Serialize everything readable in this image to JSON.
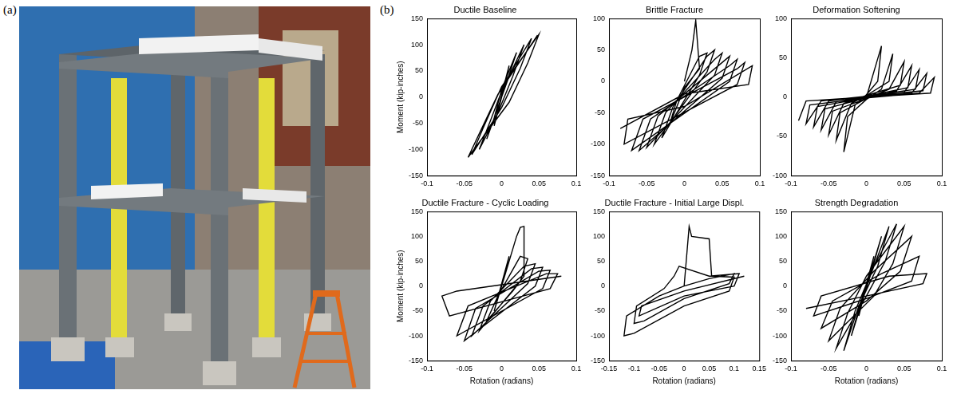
{
  "panel_labels": [
    "(a)",
    "(b)"
  ],
  "chart_data": [
    {
      "type": "line",
      "title": "Ductile Baseline",
      "y_label": "Moment (kip-inches)",
      "xlim": [
        -0.1,
        0.1
      ],
      "xticks": [
        -0.1,
        -0.05,
        0,
        0.05,
        0.1
      ],
      "ylim": [
        -150,
        150
      ],
      "yticks": [
        -150,
        -100,
        -50,
        0,
        50,
        100,
        150
      ],
      "grid": false,
      "color": "#000000",
      "line_style": "solid",
      "marker": "none",
      "x": [
        0,
        0.01,
        0.0,
        -0.01,
        0,
        0.02,
        0.0,
        -0.01,
        -0.02,
        -0.005,
        0.01,
        0.03,
        0.015,
        -0.005,
        -0.03,
        -0.015,
        0.005,
        0.04,
        0.025,
        0.0,
        -0.04,
        -0.025,
        0.0,
        0.05,
        0.035,
        0.01,
        -0.045,
        -0.03,
        -0.005,
        0.048
      ],
      "values": [
        0,
        60,
        5,
        -55,
        0,
        85,
        15,
        -40,
        -80,
        -20,
        40,
        100,
        40,
        -30,
        -100,
        -45,
        30,
        112,
        55,
        -20,
        -110,
        -60,
        20,
        120,
        65,
        -10,
        -115,
        -70,
        5,
        118
      ]
    },
    {
      "type": "line",
      "title": "Brittle Fracture",
      "xlim": [
        -0.1,
        0.1
      ],
      "xticks": [
        -0.1,
        -0.05,
        0,
        0.05,
        0.1
      ],
      "ylim": [
        -150,
        100
      ],
      "yticks": [
        -150,
        -100,
        -50,
        0,
        50,
        100
      ],
      "grid": false,
      "color": "#000000",
      "line_style": "solid",
      "marker": "none",
      "x": [
        0,
        0.01,
        0.015,
        0.02,
        0.0,
        -0.02,
        -0.01,
        0.02,
        0.03,
        0.02,
        -0.03,
        -0.015,
        0.03,
        0.04,
        0.03,
        -0.04,
        -0.025,
        0.04,
        0.05,
        0.04,
        -0.05,
        -0.035,
        0.05,
        0.06,
        0.05,
        -0.06,
        -0.045,
        0.06,
        0.07,
        0.06,
        -0.07,
        -0.055,
        0.07,
        0.08,
        0.07,
        -0.08,
        -0.075,
        0.0,
        0.09,
        0.085,
        0.0,
        -0.085
      ],
      "values": [
        0,
        50,
        97,
        20,
        -10,
        -70,
        -30,
        40,
        45,
        10,
        -90,
        -40,
        40,
        50,
        15,
        -100,
        -50,
        35,
        45,
        10,
        -105,
        -55,
        30,
        40,
        5,
        -110,
        -60,
        25,
        35,
        0,
        -110,
        -60,
        20,
        30,
        -5,
        -100,
        -60,
        -40,
        25,
        -5,
        -20,
        -75
      ]
    },
    {
      "type": "line",
      "title": "Deformation Softening",
      "xlim": [
        -0.1,
        0.1
      ],
      "xticks": [
        -0.1,
        -0.05,
        0,
        0.05,
        0.1
      ],
      "ylim": [
        -100,
        100
      ],
      "yticks": [
        -100,
        -50,
        0,
        50,
        100
      ],
      "grid": false,
      "color": "#000000",
      "line_style": "solid",
      "marker": "none",
      "x": [
        0,
        0.02,
        0.015,
        0.0,
        -0.015,
        -0.03,
        -0.025,
        0,
        0.02,
        0.035,
        0.03,
        0.0,
        -0.02,
        -0.04,
        -0.035,
        0,
        0.03,
        0.05,
        0.045,
        0,
        -0.03,
        -0.05,
        -0.045,
        0,
        0.04,
        0.06,
        0.055,
        0,
        -0.04,
        -0.06,
        -0.055,
        0,
        0.05,
        0.07,
        0.065,
        0,
        -0.05,
        -0.07,
        -0.065,
        0,
        0.06,
        0.08,
        0.075,
        0,
        -0.06,
        -0.08,
        -0.075,
        0,
        0.07,
        0.09,
        0.085,
        0,
        -0.08,
        -0.09
      ],
      "values": [
        0,
        65,
        20,
        3,
        -10,
        -70,
        -25,
        -3,
        10,
        55,
        20,
        2,
        -8,
        -55,
        -20,
        -2,
        10,
        45,
        15,
        2,
        -8,
        -48,
        -18,
        -2,
        8,
        40,
        12,
        1,
        -6,
        -42,
        -15,
        -1,
        6,
        35,
        10,
        1,
        -5,
        -38,
        -12,
        -1,
        5,
        30,
        8,
        1,
        -5,
        -34,
        -10,
        -1,
        5,
        25,
        5,
        0,
        -5,
        -30
      ]
    },
    {
      "type": "line",
      "title": "Ductile Fracture - Cyclic Loading",
      "x_label": "Rotation (radians)",
      "y_label": "Moment (kip-inches)",
      "xlim": [
        -0.1,
        0.1
      ],
      "xticks": [
        -0.1,
        -0.05,
        0,
        0.05,
        0.1
      ],
      "ylim": [
        -150,
        150
      ],
      "yticks": [
        -150,
        -100,
        -50,
        0,
        50,
        100,
        150
      ],
      "grid": false,
      "color": "#000000",
      "line_style": "solid",
      "marker": "none",
      "x": [
        0,
        0.01,
        0.0,
        -0.01,
        0,
        0.02,
        0.025,
        0.03,
        0.03,
        0.03,
        0.015,
        -0.02,
        -0.005,
        0.025,
        0.035,
        0.025,
        -0.03,
        -0.015,
        0.03,
        0.045,
        0.035,
        -0.04,
        -0.025,
        0.04,
        0.055,
        0.045,
        -0.05,
        -0.035,
        0.05,
        0.065,
        0.055,
        -0.06,
        -0.045,
        0.06,
        0.075,
        0.065,
        -0.07,
        -0.08,
        -0.06,
        0.08
      ],
      "values": [
        0,
        60,
        5,
        -50,
        0,
        100,
        118,
        120,
        60,
        20,
        -10,
        -70,
        -20,
        60,
        55,
        10,
        -90,
        -30,
        40,
        45,
        5,
        -100,
        -40,
        35,
        38,
        0,
        -110,
        -45,
        30,
        32,
        -5,
        -100,
        -40,
        25,
        25,
        -5,
        -60,
        -20,
        -10,
        20
      ]
    },
    {
      "type": "line",
      "title": "Ductile Fracture - Initial Large Displ.",
      "x_label": "Rotation (radians)",
      "xlim": [
        -0.15,
        0.15
      ],
      "xticks": [
        -0.15,
        -0.1,
        -0.05,
        0,
        0.05,
        0.1,
        0.15
      ],
      "ylim": [
        -150,
        150
      ],
      "yticks": [
        -150,
        -100,
        -50,
        0,
        50,
        100,
        150
      ],
      "grid": false,
      "color": "#000000",
      "line_style": "solid",
      "marker": "none",
      "x": [
        0,
        0.01,
        0.015,
        0.05,
        0.055,
        0.1,
        0.09,
        0.0,
        -0.1,
        -0.12,
        -0.115,
        -0.05,
        0.0,
        0.05,
        0.1,
        0.09,
        0.0,
        -0.08,
        -0.1,
        -0.095,
        -0.04,
        -0.02,
        -0.01,
        0.05,
        0.11,
        0.1,
        0.0,
        -0.09,
        -0.085,
        0.0,
        0.12
      ],
      "values": [
        0,
        120,
        100,
        95,
        20,
        18,
        -10,
        -40,
        -95,
        -100,
        -60,
        -20,
        0,
        15,
        25,
        5,
        -25,
        -70,
        -75,
        -40,
        -5,
        20,
        40,
        20,
        25,
        0,
        -20,
        -60,
        -40,
        -10,
        20
      ]
    },
    {
      "type": "line",
      "title": "Strength Degradation",
      "x_label": "Rotation (radians)",
      "xlim": [
        -0.1,
        0.1
      ],
      "xticks": [
        -0.1,
        -0.05,
        0,
        0.05,
        0.1
      ],
      "ylim": [
        -150,
        150
      ],
      "yticks": [
        -150,
        -100,
        -50,
        0,
        50,
        100,
        150
      ],
      "grid": false,
      "color": "#000000",
      "line_style": "solid",
      "marker": "none",
      "x": [
        0,
        0.01,
        0,
        -0.01,
        0,
        0.02,
        0.005,
        -0.02,
        -0.005,
        0.03,
        0.015,
        -0.01,
        -0.03,
        -0.015,
        0.01,
        0.04,
        0.025,
        0,
        -0.04,
        -0.025,
        0,
        0.05,
        0.035,
        0.01,
        -0.05,
        -0.035,
        0.01,
        0.06,
        0.045,
        0.0,
        -0.06,
        -0.045,
        0.02,
        0.07,
        0.06,
        0.0,
        -0.07,
        -0.06,
        0.03,
        0.08,
        0.075,
        0,
        -0.08
      ],
      "values": [
        0,
        60,
        5,
        -60,
        0,
        100,
        20,
        -100,
        -20,
        120,
        40,
        -40,
        -130,
        -50,
        40,
        125,
        50,
        -20,
        -125,
        -55,
        20,
        120,
        45,
        -20,
        -110,
        -45,
        30,
        100,
        30,
        -30,
        -85,
        -30,
        25,
        60,
        10,
        -25,
        -60,
        -20,
        20,
        25,
        5,
        -20,
        -45
      ]
    }
  ]
}
